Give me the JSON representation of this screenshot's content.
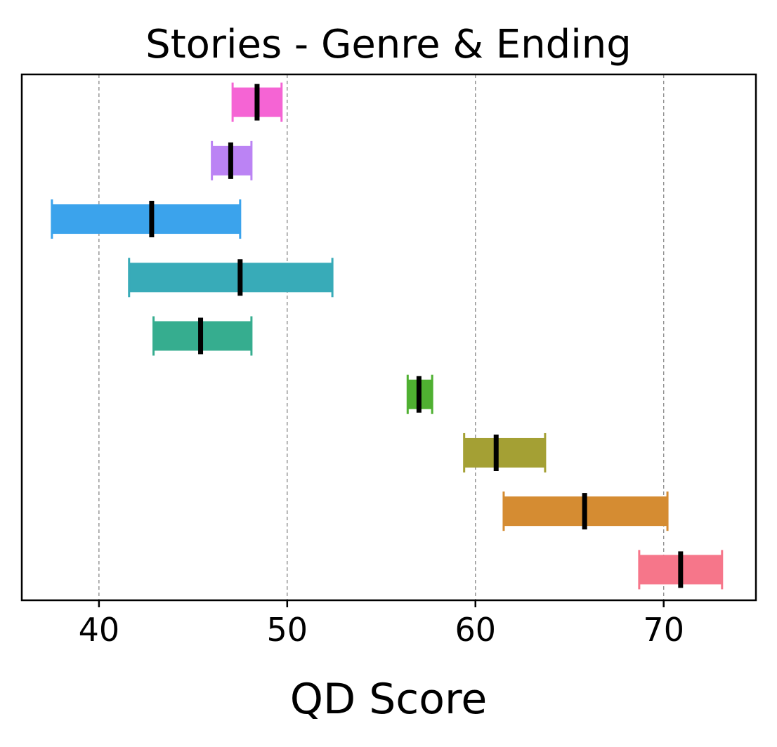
{
  "chart_data": {
    "type": "bar",
    "orientation": "horizontal",
    "chart_kind": "range-interval-with-median",
    "title": "Stories - Genre & Ending",
    "xlabel": "QD Score",
    "ylabel": "",
    "xlim": [
      35.9,
      74.9
    ],
    "xticks": [
      40,
      50,
      60,
      70
    ],
    "xtick_labels": [
      "40",
      "50",
      "60",
      "70"
    ],
    "grid": "vertical-dashed",
    "legend": "none",
    "rows": [
      {
        "low": 47.1,
        "high": 49.7,
        "median": 48.4,
        "color": "#f564d4"
      },
      {
        "low": 46.0,
        "high": 48.1,
        "median": 47.0,
        "color": "#bb83f4"
      },
      {
        "low": 37.5,
        "high": 47.5,
        "median": 42.8,
        "color": "#3ba3ec"
      },
      {
        "low": 41.6,
        "high": 52.4,
        "median": 47.5,
        "color": "#38abb8"
      },
      {
        "low": 42.9,
        "high": 48.1,
        "median": 45.4,
        "color": "#36ad8f"
      },
      {
        "low": 56.4,
        "high": 57.7,
        "median": 57.0,
        "color": "#4fb031"
      },
      {
        "low": 59.4,
        "high": 63.7,
        "median": 61.1,
        "color": "#a4a034"
      },
      {
        "low": 61.5,
        "high": 70.2,
        "median": 65.8,
        "color": "#d58c32"
      },
      {
        "low": 68.7,
        "high": 73.1,
        "median": 70.9,
        "color": "#f6768a"
      }
    ]
  }
}
